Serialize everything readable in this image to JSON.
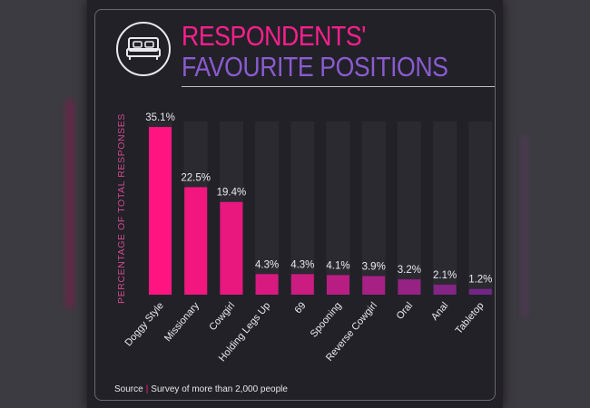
{
  "chart_data": {
    "type": "bar",
    "title_line1": "RESPONDENTS'",
    "title_line2": "FAVOURITE POSITIONS",
    "ylabel": "PERCENTAGE OF TOTAL RESPONSES",
    "categories": [
      "Doggy Style",
      "Missionary",
      "Cowgirl",
      "Holding Legs Up",
      "69",
      "Spooning",
      "Reverse Cowgirl",
      "Oral",
      "Anal",
      "Tabletop"
    ],
    "values": [
      35.1,
      22.5,
      19.4,
      4.3,
      4.3,
      4.1,
      3.9,
      3.2,
      2.1,
      1.2
    ],
    "value_labels": [
      "35.1%",
      "22.5%",
      "19.4%",
      "4.3%",
      "4.3%",
      "4.1%",
      "3.9%",
      "3.2%",
      "2.1%",
      "1.2%"
    ],
    "bar_colors": [
      "#ff1480",
      "#f2167f",
      "#e8187f",
      "#d81a80",
      "#cb1c81",
      "#b81e82",
      "#a72084",
      "#962284",
      "#842485",
      "#722686"
    ],
    "ylim": [
      0,
      35.1
    ]
  },
  "source": {
    "label": "Source",
    "separator": "|",
    "text": "Survey of more than 2,000 people"
  },
  "colors": {
    "title_pink": "#ff1f8e",
    "title_purple": "#8a5bd0",
    "background": "#222127"
  },
  "icons": {
    "header": "bed-icon"
  }
}
